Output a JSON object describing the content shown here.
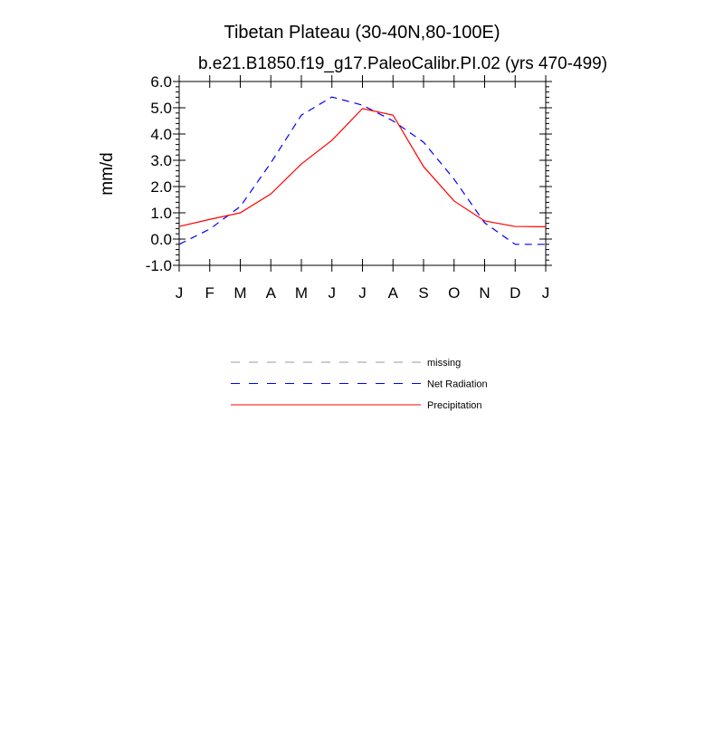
{
  "chart_data": {
    "type": "line",
    "title": "Tibetan Plateau (30-40N,80-100E)",
    "subtitle": "b.e21.B1850.f19_g17.PaleoCalibr.PI.02 (yrs 470-499)",
    "y_label": "mm/d",
    "categories": [
      "J",
      "F",
      "M",
      "A",
      "M",
      "J",
      "J",
      "A",
      "S",
      "O",
      "N",
      "D",
      "J"
    ],
    "ylim": [
      -1,
      6
    ],
    "yticks": [
      {
        "value": -1,
        "label": "-1.0"
      },
      {
        "value": 0,
        "label": "0.0"
      },
      {
        "value": 1,
        "label": "1.0"
      },
      {
        "value": 2,
        "label": "2.0"
      },
      {
        "value": 3,
        "label": "3.0"
      },
      {
        "value": 4,
        "label": "4.0"
      },
      {
        "value": 5,
        "label": "5.0"
      },
      {
        "value": 6,
        "label": "6.0"
      }
    ],
    "series": [
      {
        "name": "missing",
        "color": "#999999",
        "line_style": "dashed",
        "values": [
          null,
          null,
          null,
          null,
          null,
          null,
          null,
          null,
          null,
          null,
          null,
          null,
          null
        ]
      },
      {
        "name": "Net Radiation",
        "color": "#0000ff",
        "line_style": "dashed",
        "values": [
          -0.2,
          0.38,
          1.24,
          2.9,
          4.72,
          5.41,
          5.1,
          4.5,
          3.69,
          2.28,
          0.62,
          -0.2,
          -0.2
        ]
      },
      {
        "name": "Precipitation",
        "color": "#ff0000",
        "line_style": "solid",
        "values": [
          0.48,
          0.75,
          1.0,
          1.72,
          2.86,
          3.76,
          4.97,
          4.72,
          2.76,
          1.45,
          0.69,
          0.48,
          0.47
        ]
      }
    ]
  }
}
